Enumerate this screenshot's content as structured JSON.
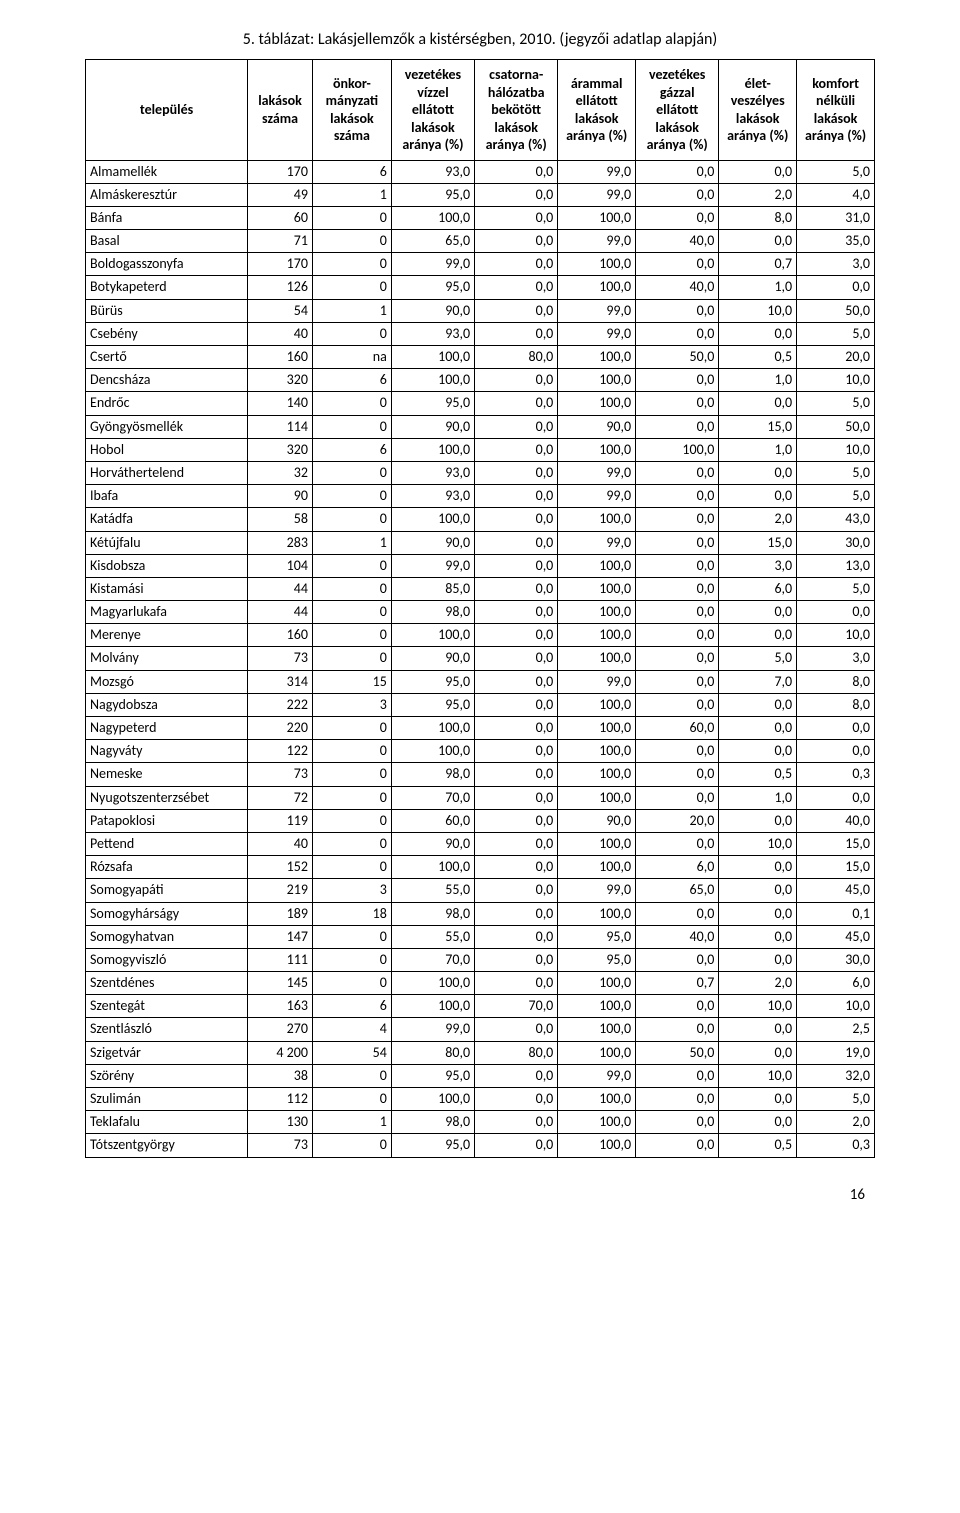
{
  "page_number": "16",
  "title": "5. táblázat: Lakásjellemzők a kistérségben, 2010. (jegyzői adatlap alapján)",
  "table": {
    "header_font_size_pt": 11,
    "body_font_size_pt": 11,
    "border_color": "#000000",
    "columns": [
      "település",
      "lakások száma",
      "önkor-mányzati lakások száma",
      "vezetékes vízzel ellátott lakások aránya (%)",
      "csatorna-hálózatba bekötött lakások aránya (%)",
      "árammal ellátott lakások aránya (%)",
      "vezetékes gázzal ellátott lakások aránya (%)",
      "élet-veszélyes lakások aránya (%)",
      "komfort nélküli lakások aránya (%)"
    ],
    "rows": [
      [
        "Almamellék",
        "170",
        "6",
        "93,0",
        "0,0",
        "99,0",
        "0,0",
        "0,0",
        "5,0"
      ],
      [
        "Almáskeresztúr",
        "49",
        "1",
        "95,0",
        "0,0",
        "99,0",
        "0,0",
        "2,0",
        "4,0"
      ],
      [
        "Bánfa",
        "60",
        "0",
        "100,0",
        "0,0",
        "100,0",
        "0,0",
        "8,0",
        "31,0"
      ],
      [
        "Basal",
        "71",
        "0",
        "65,0",
        "0,0",
        "99,0",
        "40,0",
        "0,0",
        "35,0"
      ],
      [
        "Boldogasszonyfa",
        "170",
        "0",
        "99,0",
        "0,0",
        "100,0",
        "0,0",
        "0,7",
        "3,0"
      ],
      [
        "Botykapeterd",
        "126",
        "0",
        "95,0",
        "0,0",
        "100,0",
        "40,0",
        "1,0",
        "0,0"
      ],
      [
        "Bürüs",
        "54",
        "1",
        "90,0",
        "0,0",
        "99,0",
        "0,0",
        "10,0",
        "50,0"
      ],
      [
        "Csebény",
        "40",
        "0",
        "93,0",
        "0,0",
        "99,0",
        "0,0",
        "0,0",
        "5,0"
      ],
      [
        "Csertő",
        "160",
        "na",
        "100,0",
        "80,0",
        "100,0",
        "50,0",
        "0,5",
        "20,0"
      ],
      [
        "Dencsháza",
        "320",
        "6",
        "100,0",
        "0,0",
        "100,0",
        "0,0",
        "1,0",
        "10,0"
      ],
      [
        "Endrőc",
        "140",
        "0",
        "95,0",
        "0,0",
        "100,0",
        "0,0",
        "0,0",
        "5,0"
      ],
      [
        "Gyöngyösmellék",
        "114",
        "0",
        "90,0",
        "0,0",
        "90,0",
        "0,0",
        "15,0",
        "50,0"
      ],
      [
        "Hobol",
        "320",
        "6",
        "100,0",
        "0,0",
        "100,0",
        "100,0",
        "1,0",
        "10,0"
      ],
      [
        "Horváthertelend",
        "32",
        "0",
        "93,0",
        "0,0",
        "99,0",
        "0,0",
        "0,0",
        "5,0"
      ],
      [
        "Ibafa",
        "90",
        "0",
        "93,0",
        "0,0",
        "99,0",
        "0,0",
        "0,0",
        "5,0"
      ],
      [
        "Katádfa",
        "58",
        "0",
        "100,0",
        "0,0",
        "100,0",
        "0,0",
        "2,0",
        "43,0"
      ],
      [
        "Kétújfalu",
        "283",
        "1",
        "90,0",
        "0,0",
        "99,0",
        "0,0",
        "15,0",
        "30,0"
      ],
      [
        "Kisdobsza",
        "104",
        "0",
        "99,0",
        "0,0",
        "100,0",
        "0,0",
        "3,0",
        "13,0"
      ],
      [
        "Kistamási",
        "44",
        "0",
        "85,0",
        "0,0",
        "100,0",
        "0,0",
        "6,0",
        "5,0"
      ],
      [
        "Magyarlukafa",
        "44",
        "0",
        "98,0",
        "0,0",
        "100,0",
        "0,0",
        "0,0",
        "0,0"
      ],
      [
        "Merenye",
        "160",
        "0",
        "100,0",
        "0,0",
        "100,0",
        "0,0",
        "0,0",
        "10,0"
      ],
      [
        "Molvány",
        "73",
        "0",
        "90,0",
        "0,0",
        "100,0",
        "0,0",
        "5,0",
        "3,0"
      ],
      [
        "Mozsgó",
        "314",
        "15",
        "95,0",
        "0,0",
        "99,0",
        "0,0",
        "7,0",
        "8,0"
      ],
      [
        "Nagydobsza",
        "222",
        "3",
        "95,0",
        "0,0",
        "100,0",
        "0,0",
        "0,0",
        "8,0"
      ],
      [
        "Nagypeterd",
        "220",
        "0",
        "100,0",
        "0,0",
        "100,0",
        "60,0",
        "0,0",
        "0,0"
      ],
      [
        "Nagyváty",
        "122",
        "0",
        "100,0",
        "0,0",
        "100,0",
        "0,0",
        "0,0",
        "0,0"
      ],
      [
        "Nemeske",
        "73",
        "0",
        "98,0",
        "0,0",
        "100,0",
        "0,0",
        "0,5",
        "0,3"
      ],
      [
        "Nyugotszenterzsébet",
        "72",
        "0",
        "70,0",
        "0,0",
        "100,0",
        "0,0",
        "1,0",
        "0,0"
      ],
      [
        "Patapoklosi",
        "119",
        "0",
        "60,0",
        "0,0",
        "90,0",
        "20,0",
        "0,0",
        "40,0"
      ],
      [
        "Pettend",
        "40",
        "0",
        "90,0",
        "0,0",
        "100,0",
        "0,0",
        "10,0",
        "15,0"
      ],
      [
        "Rózsafa",
        "152",
        "0",
        "100,0",
        "0,0",
        "100,0",
        "6,0",
        "0,0",
        "15,0"
      ],
      [
        "Somogyapáti",
        "219",
        "3",
        "55,0",
        "0,0",
        "99,0",
        "65,0",
        "0,0",
        "45,0"
      ],
      [
        "Somogyhárságy",
        "189",
        "18",
        "98,0",
        "0,0",
        "100,0",
        "0,0",
        "0,0",
        "0,1"
      ],
      [
        "Somogyhatvan",
        "147",
        "0",
        "55,0",
        "0,0",
        "95,0",
        "40,0",
        "0,0",
        "45,0"
      ],
      [
        "Somogyviszló",
        "111",
        "0",
        "70,0",
        "0,0",
        "95,0",
        "0,0",
        "0,0",
        "30,0"
      ],
      [
        "Szentdénes",
        "145",
        "0",
        "100,0",
        "0,0",
        "100,0",
        "0,7",
        "2,0",
        "6,0"
      ],
      [
        "Szentegát",
        "163",
        "6",
        "100,0",
        "70,0",
        "100,0",
        "0,0",
        "10,0",
        "10,0"
      ],
      [
        "Szentlászló",
        "270",
        "4",
        "99,0",
        "0,0",
        "100,0",
        "0,0",
        "0,0",
        "2,5"
      ],
      [
        "Szigetvár",
        "4 200",
        "54",
        "80,0",
        "80,0",
        "100,0",
        "50,0",
        "0,0",
        "19,0"
      ],
      [
        "Szörény",
        "38",
        "0",
        "95,0",
        "0,0",
        "99,0",
        "0,0",
        "10,0",
        "32,0"
      ],
      [
        "Szulimán",
        "112",
        "0",
        "100,0",
        "0,0",
        "100,0",
        "0,0",
        "0,0",
        "5,0"
      ],
      [
        "Teklafalu",
        "130",
        "1",
        "98,0",
        "0,0",
        "100,0",
        "0,0",
        "0,0",
        "2,0"
      ],
      [
        "Tótszentgyörgy",
        "73",
        "0",
        "95,0",
        "0,0",
        "100,0",
        "0,0",
        "0,5",
        "0,3"
      ]
    ]
  }
}
